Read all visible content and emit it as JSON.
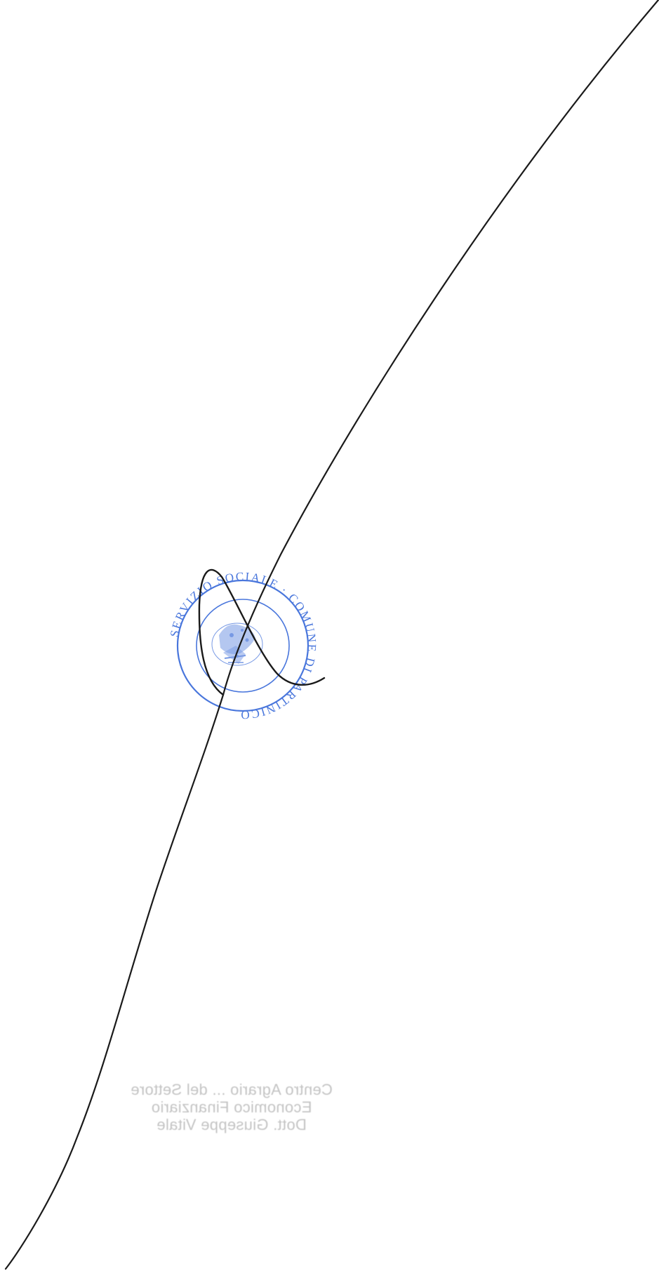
{
  "stamp": {
    "ring_text": "SERVIZIO SOCIALE · COMUNE DI PARTINICO",
    "color": "#2a5fd6"
  },
  "signature": {
    "ink_color": "#1a1a1a"
  },
  "show_through": {
    "lines": [
      "Centro Agrario ... del Settore",
      "Economico Finanziario",
      "Dott. Giuseppe Vitale"
    ],
    "color": "#c4c4c4"
  }
}
